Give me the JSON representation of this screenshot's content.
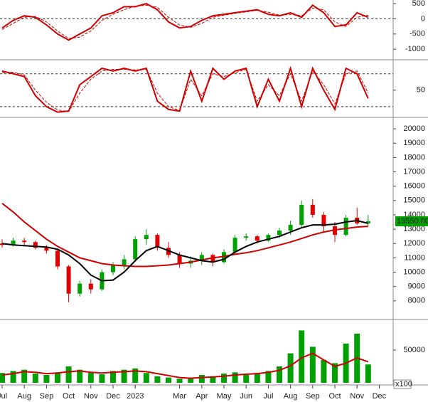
{
  "chart_data": [
    {
      "type": "line",
      "ylim": [
        -1300,
        620
      ],
      "yticks": [
        500,
        0,
        -500,
        -1000
      ],
      "zero_line": true,
      "series": [
        {
          "color": "#d00000",
          "dashed": false,
          "values": [
            -300,
            -50,
            100,
            50,
            -200,
            -500,
            -700,
            -500,
            -300,
            100,
            200,
            400,
            400,
            500,
            300,
            -100,
            -300,
            -250,
            -50,
            100,
            150,
            200,
            250,
            300,
            150,
            100,
            200,
            50,
            450,
            200,
            -250,
            -200,
            200,
            50,
            null
          ]
        },
        {
          "color": "#d00000",
          "dashed": true,
          "values": [
            -350,
            -150,
            50,
            80,
            -100,
            -400,
            -650,
            -600,
            -400,
            -50,
            150,
            300,
            420,
            450,
            380,
            50,
            -200,
            -280,
            -150,
            50,
            120,
            180,
            230,
            280,
            220,
            120,
            150,
            100,
            350,
            300,
            -100,
            -250,
            50,
            120,
            null
          ]
        }
      ]
    },
    {
      "type": "line",
      "ylim": [
        3,
        103
      ],
      "yticks": [
        50
      ],
      "hlines": [
        80,
        20
      ],
      "series": [
        {
          "color": "#d00000",
          "dashed": false,
          "values": [
            85,
            80,
            75,
            40,
            20,
            10,
            12,
            60,
            75,
            90,
            85,
            90,
            85,
            90,
            30,
            15,
            12,
            85,
            30,
            90,
            70,
            85,
            90,
            20,
            70,
            30,
            90,
            20,
            90,
            50,
            15,
            90,
            80,
            35,
            null
          ]
        },
        {
          "color": "#d00000",
          "dashed": true,
          "values": [
            82,
            83,
            78,
            50,
            28,
            14,
            11,
            45,
            70,
            85,
            88,
            88,
            87,
            88,
            45,
            20,
            13,
            70,
            40,
            80,
            75,
            82,
            88,
            30,
            60,
            40,
            80,
            30,
            85,
            60,
            25,
            80,
            85,
            45,
            null
          ]
        }
      ]
    },
    {
      "type": "candlestick",
      "ylim": [
        6800,
        20650
      ],
      "yticks": [
        8000,
        9000,
        10000,
        11000,
        12000,
        13000,
        14000,
        15000,
        16000,
        17000,
        18000,
        19000,
        20000
      ],
      "up_color": "#00a000",
      "down_color": "#e00000",
      "open": [
        12000,
        11900,
        12200,
        12100,
        11700,
        11500,
        10400,
        8500,
        9200,
        8800,
        10000,
        10500,
        10900,
        12300,
        12600,
        11700,
        11200,
        10600,
        10800,
        11200,
        10700,
        11400,
        12400,
        12500,
        12200,
        12600,
        12900,
        13300,
        14700,
        14000,
        13200,
        12600,
        13800,
        13400,
        null
      ],
      "high": [
        12300,
        12400,
        12400,
        12200,
        11900,
        11600,
        10500,
        9400,
        9500,
        10200,
        10700,
        11200,
        12500,
        13000,
        12700,
        12100,
        11400,
        11100,
        11400,
        11300,
        11600,
        12600,
        12700,
        12600,
        12700,
        13100,
        13600,
        15000,
        15100,
        14200,
        13500,
        14000,
        14500,
        14000,
        null
      ],
      "low": [
        11700,
        11800,
        11900,
        11600,
        11300,
        10200,
        7900,
        8300,
        8500,
        8700,
        9800,
        10200,
        10800,
        11900,
        11500,
        11000,
        10300,
        10300,
        10500,
        10400,
        10600,
        11300,
        12200,
        12000,
        12100,
        12400,
        12600,
        13100,
        13800,
        12800,
        12100,
        12500,
        13300,
        13200,
        null
      ],
      "close": [
        11900,
        12200,
        12100,
        11700,
        11500,
        10400,
        8500,
        9200,
        8800,
        10000,
        10500,
        10900,
        12300,
        12600,
        11700,
        11200,
        10600,
        10800,
        11200,
        10700,
        11400,
        12400,
        12500,
        12200,
        12600,
        12900,
        13300,
        14700,
        14000,
        13200,
        12600,
        13800,
        13400,
        13550,
        null
      ],
      "series": [
        {
          "color": "#d00000",
          "values": [
            14800,
            14200,
            13500,
            12900,
            12300,
            11800,
            11400,
            11000,
            10800,
            10600,
            10500,
            10450,
            10400,
            10400,
            10450,
            10500,
            10600,
            10700,
            10850,
            11000,
            11100,
            11250,
            11350,
            11500,
            11700,
            11900,
            12100,
            12350,
            12600,
            12800,
            12950,
            13050,
            13150,
            13200,
            null
          ]
        },
        {
          "color": "#000000",
          "values": [
            12000,
            11900,
            11850,
            11800,
            11750,
            11600,
            11200,
            10600,
            9800,
            9400,
            9450,
            10000,
            10800,
            11500,
            11800,
            11500,
            11200,
            11000,
            10800,
            10700,
            10900,
            11400,
            11800,
            12100,
            12300,
            12500,
            12800,
            13100,
            13300,
            13300,
            13350,
            13500,
            13600,
            13400,
            null
          ]
        }
      ],
      "last_price": {
        "value": 13550,
        "label": "13550.00"
      }
    },
    {
      "type": "bar",
      "ylim": [
        0,
        93500
      ],
      "yticks": [
        50000
      ],
      "unit_label": "x100",
      "color": "#00a000",
      "categories": [
        "Jul",
        null,
        "Aug",
        null,
        "Sep",
        null,
        "Oct",
        null,
        "Nov",
        null,
        "Dec",
        null,
        "2023",
        null,
        null,
        null,
        "Mar",
        null,
        "Apr",
        null,
        "May",
        null,
        "Jun",
        null,
        "Jul",
        null,
        "Aug",
        null,
        "Sep",
        null,
        "Oct",
        null,
        "Nov",
        null,
        "Dec"
      ],
      "values": [
        15000,
        18000,
        20000,
        14000,
        12000,
        16000,
        25000,
        20000,
        15000,
        13000,
        18000,
        20000,
        22000,
        15000,
        10000,
        8000,
        6000,
        8000,
        12000,
        10000,
        14000,
        16000,
        12000,
        15000,
        18000,
        25000,
        45000,
        80000,
        55000,
        35000,
        30000,
        60000,
        75000,
        28000,
        null
      ],
      "series": [
        {
          "color": "#d00000",
          "values": [
            12000,
            14000,
            17000,
            16000,
            14000,
            15000,
            17000,
            18000,
            16000,
            15000,
            16000,
            17000,
            18000,
            17000,
            14000,
            11000,
            8000,
            7000,
            8000,
            9000,
            10000,
            12000,
            13000,
            14000,
            16000,
            19000,
            26000,
            38000,
            45000,
            35000,
            25000,
            30000,
            38000,
            32000,
            null
          ]
        }
      ]
    }
  ]
}
